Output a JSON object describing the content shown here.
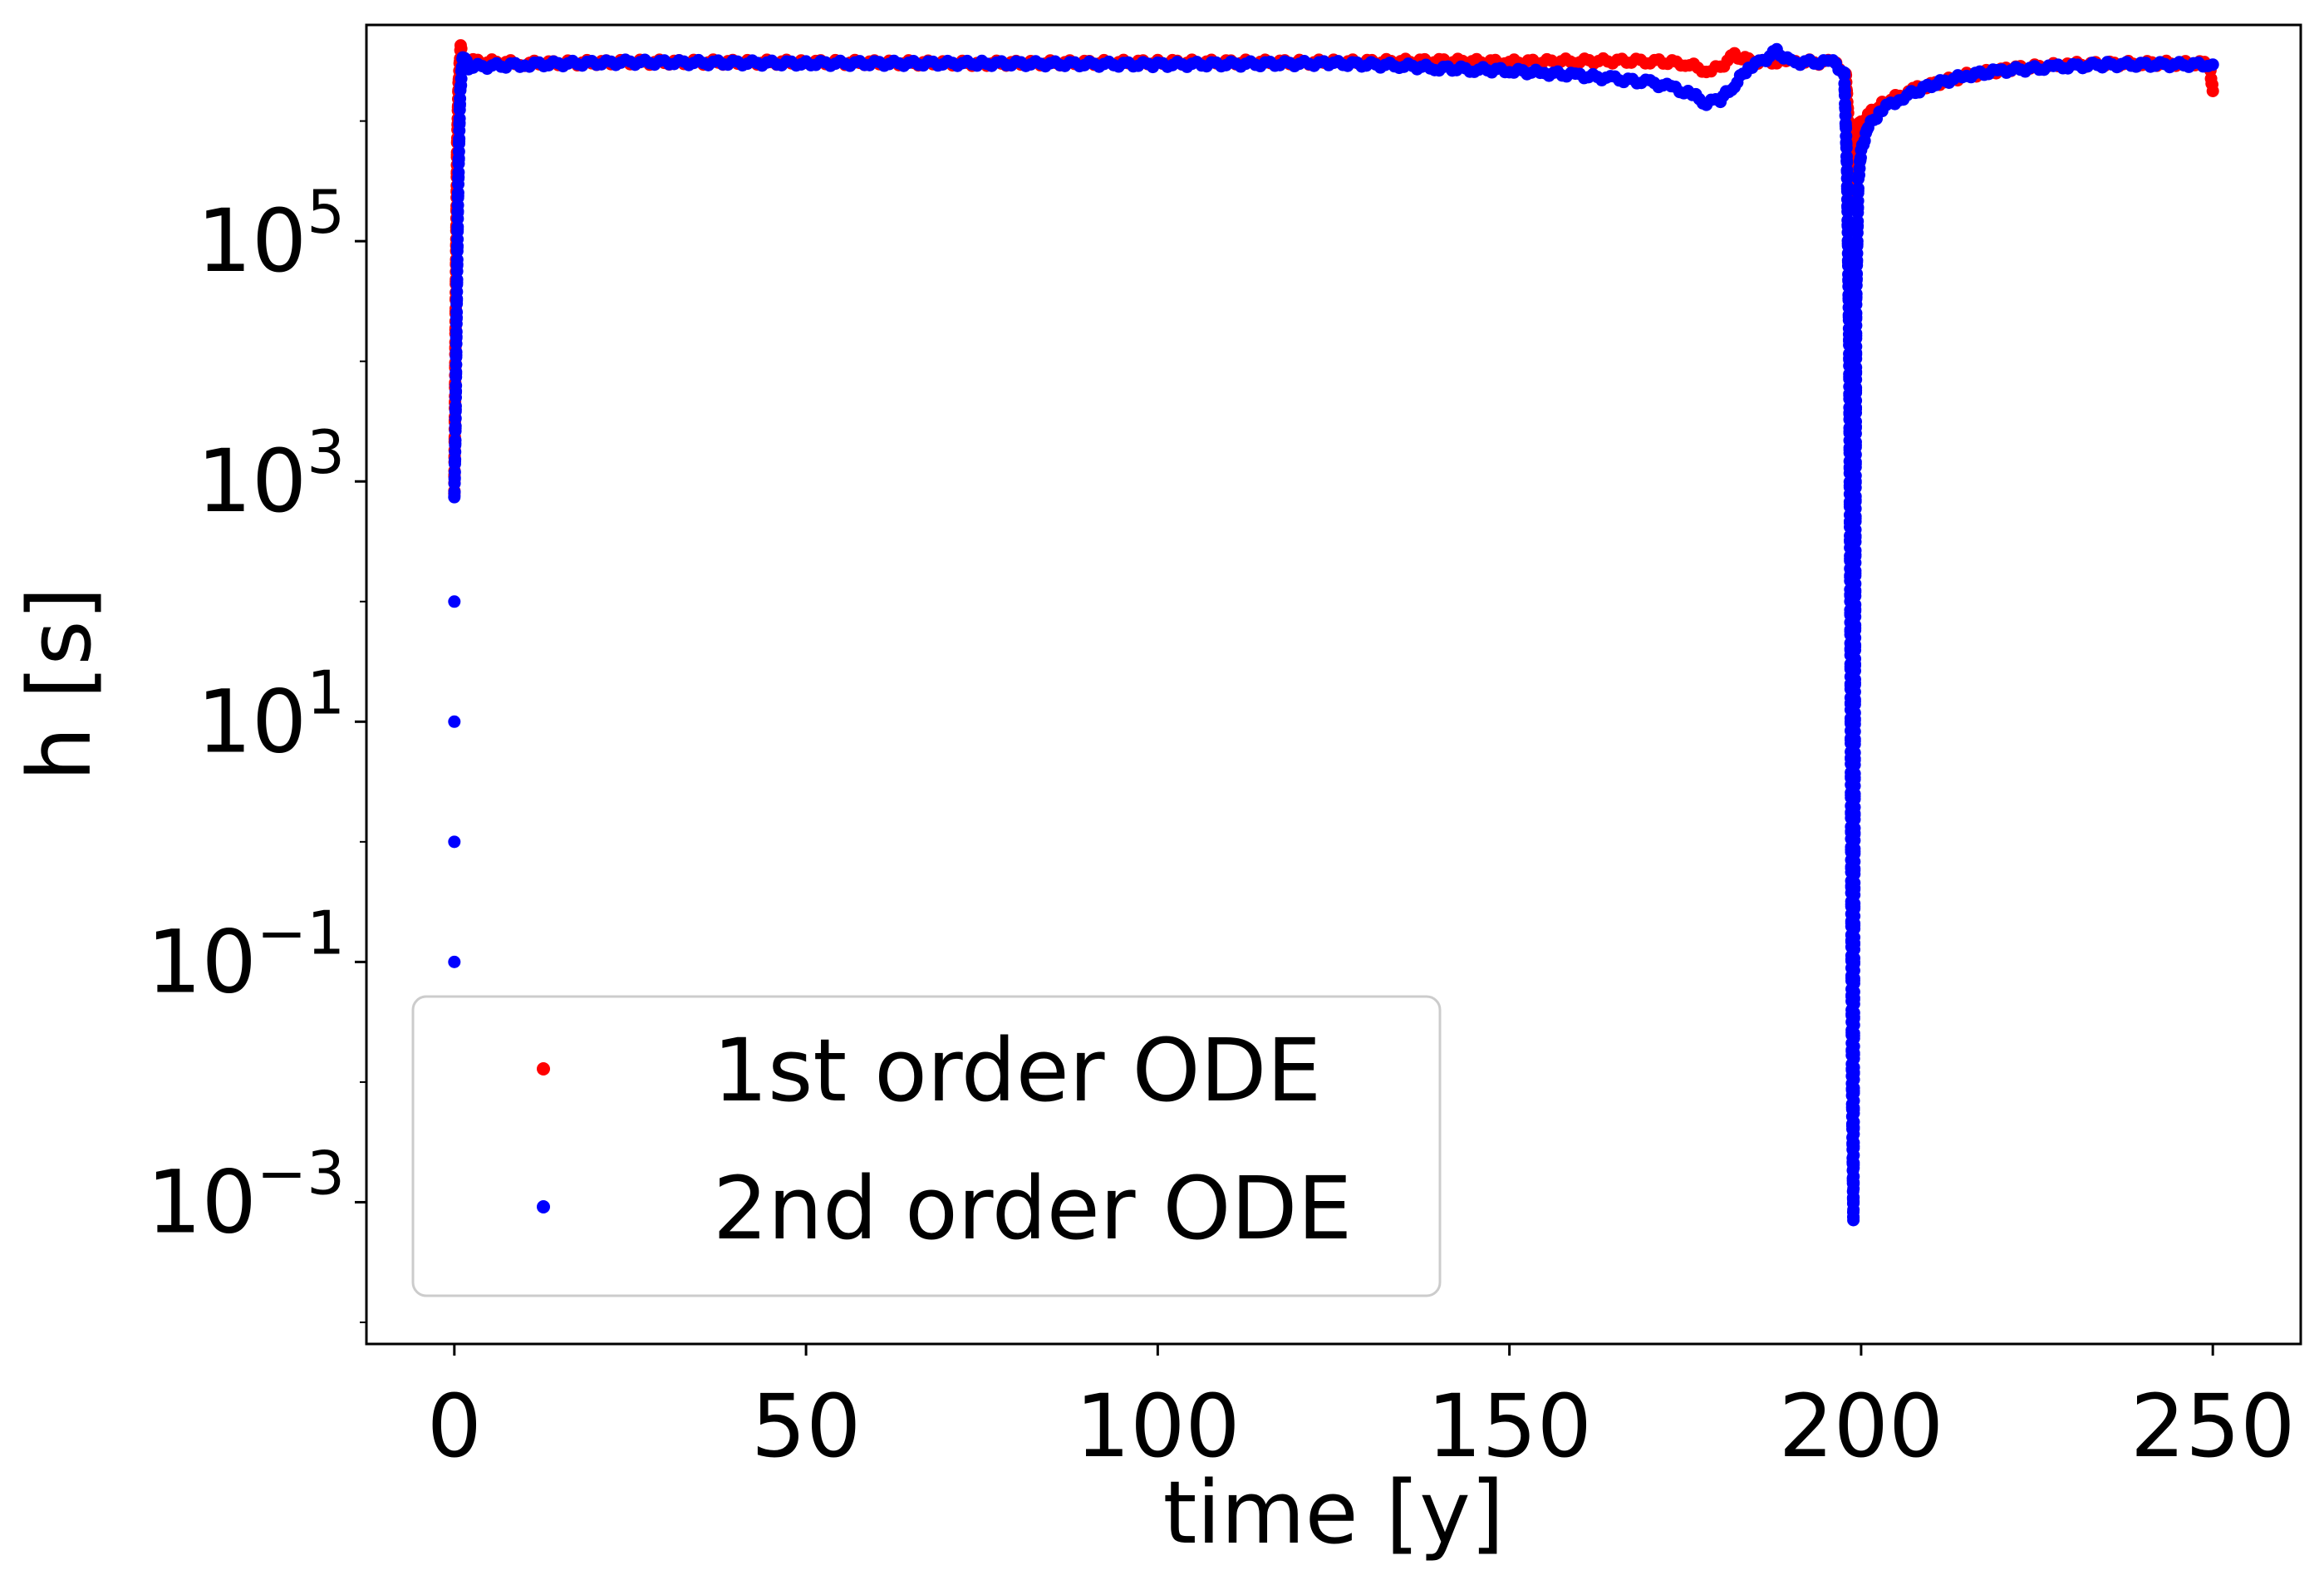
{
  "chart_data": {
    "type": "scatter",
    "title": "",
    "xlabel": "time [y]",
    "ylabel": "h [s]",
    "yscale": "log",
    "xlim": [
      -12.5,
      262.5
    ],
    "ylim_log10": [
      -4.18,
      6.8
    ],
    "xticks": [
      {
        "value": 0,
        "label": "0"
      },
      {
        "value": 50,
        "label": "50"
      },
      {
        "value": 100,
        "label": "100"
      },
      {
        "value": 150,
        "label": "150"
      },
      {
        "value": 200,
        "label": "200"
      },
      {
        "value": 250,
        "label": "250"
      }
    ],
    "yticks": [
      {
        "log10": 5,
        "base": "10",
        "exp": "5"
      },
      {
        "log10": 3,
        "base": "10",
        "exp": "3"
      },
      {
        "log10": 1,
        "base": "10",
        "exp": "1"
      },
      {
        "log10": -1,
        "base": "10",
        "exp": "−1"
      },
      {
        "log10": -3,
        "base": "10",
        "exp": "−3"
      }
    ],
    "legend": {
      "location": "lower-left",
      "entries": [
        {
          "label": "1st order ODE",
          "color": "#ff0000"
        },
        {
          "label": "2nd order ODE",
          "color": "#0000ff"
        }
      ]
    },
    "series": [
      {
        "name": "1st order ODE",
        "color": "#ff0000",
        "points_log10": [
          [
            0,
            2.9
          ],
          [
            0.2,
            4.5
          ],
          [
            0.4,
            5.8
          ],
          [
            0.6,
            6.3
          ],
          [
            0.9,
            6.62
          ],
          [
            1.3,
            6.45
          ],
          [
            2,
            6.5
          ],
          [
            10,
            6.48
          ],
          [
            25,
            6.49
          ],
          [
            50,
            6.49
          ],
          [
            75,
            6.48
          ],
          [
            100,
            6.49
          ],
          [
            125,
            6.49
          ],
          [
            140,
            6.5
          ],
          [
            150,
            6.49
          ],
          [
            160,
            6.5
          ],
          [
            170,
            6.5
          ],
          [
            175,
            6.48
          ],
          [
            178,
            6.42
          ],
          [
            180,
            6.45
          ],
          [
            182,
            6.55
          ],
          [
            184,
            6.5
          ],
          [
            190,
            6.49
          ],
          [
            196,
            6.49
          ],
          [
            197.8,
            6.4
          ],
          [
            198.3,
            5.9
          ],
          [
            198.7,
            5.4
          ],
          [
            199.2,
            5.9
          ],
          [
            200,
            6.0
          ],
          [
            203,
            6.15
          ],
          [
            208,
            6.27
          ],
          [
            215,
            6.38
          ],
          [
            222,
            6.44
          ],
          [
            230,
            6.47
          ],
          [
            240,
            6.48
          ],
          [
            249.5,
            6.48
          ],
          [
            250,
            6.25
          ]
        ]
      },
      {
        "name": "2nd order ODE",
        "color": "#0000ff",
        "points_log10": [
          [
            0,
            2.85
          ],
          [
            0.15,
            3.4
          ],
          [
            0.3,
            4.3
          ],
          [
            0.5,
            5.3
          ],
          [
            0.8,
            6.2
          ],
          [
            1.2,
            6.55
          ],
          [
            2,
            6.45
          ],
          [
            10,
            6.47
          ],
          [
            25,
            6.49
          ],
          [
            50,
            6.48
          ],
          [
            75,
            6.48
          ],
          [
            100,
            6.47
          ],
          [
            125,
            6.48
          ],
          [
            135,
            6.46
          ],
          [
            140,
            6.44
          ],
          [
            145,
            6.43
          ],
          [
            150,
            6.42
          ],
          [
            155,
            6.4
          ],
          [
            160,
            6.38
          ],
          [
            165,
            6.35
          ],
          [
            170,
            6.32
          ],
          [
            173,
            6.28
          ],
          [
            176,
            6.22
          ],
          [
            178,
            6.15
          ],
          [
            180,
            6.18
          ],
          [
            182,
            6.3
          ],
          [
            184,
            6.45
          ],
          [
            186,
            6.5
          ],
          [
            188,
            6.58
          ],
          [
            190,
            6.49
          ],
          [
            196,
            6.49
          ],
          [
            197.6,
            6.4
          ],
          [
            198,
            5.6
          ],
          [
            198.3,
            4.2
          ],
          [
            198.5,
            1.5
          ],
          [
            198.7,
            -2.0
          ],
          [
            198.9,
            -3.15
          ],
          [
            199.1,
            1.0
          ],
          [
            199.3,
            4.5
          ],
          [
            199.6,
            5.5
          ],
          [
            200,
            5.75
          ],
          [
            201,
            5.95
          ],
          [
            203,
            6.1
          ],
          [
            206,
            6.2
          ],
          [
            210,
            6.3
          ],
          [
            215,
            6.38
          ],
          [
            220,
            6.42
          ],
          [
            228,
            6.45
          ],
          [
            235,
            6.47
          ],
          [
            250,
            6.47
          ]
        ],
        "extra_points_log10": [
          [
            0,
            2.0
          ],
          [
            0,
            1.0
          ],
          [
            0,
            0.0
          ],
          [
            0,
            -1.0
          ]
        ]
      }
    ]
  }
}
